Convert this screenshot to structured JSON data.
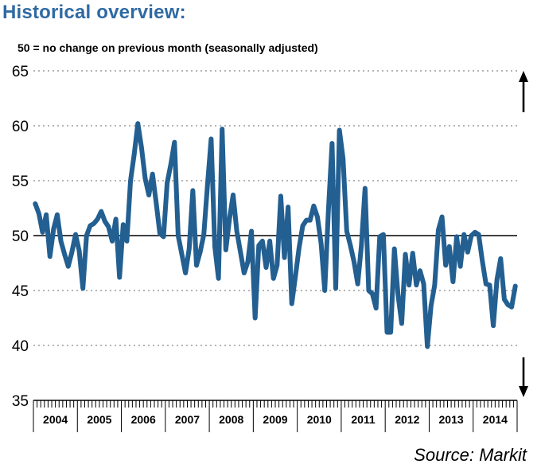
{
  "title": "Historical overview:",
  "subtitle": "50 = no change on previous month (seasonally adjusted)",
  "source": "Source: Markit",
  "colors": {
    "line": "#235f91",
    "reference": "#000000",
    "grid": "#888888",
    "title": "#2f6aa3"
  },
  "icons": {
    "up": "arrow-up-icon",
    "down": "arrow-down-icon"
  },
  "chart_data": {
    "type": "line",
    "title": "Historical overview:",
    "xlabel": "",
    "ylabel": "",
    "ylim": [
      35,
      65
    ],
    "yticks": [
      35,
      40,
      45,
      50,
      55,
      60,
      65
    ],
    "xticks": [
      "2004",
      "2005",
      "2006",
      "2007",
      "2008",
      "2009",
      "2010",
      "2011",
      "2012",
      "2013",
      "2014"
    ],
    "reference_line": 50,
    "grid": "horizontal dotted",
    "start": "2004-01",
    "frequency": "monthly",
    "values": [
      52.9,
      52.0,
      50.3,
      51.9,
      48.1,
      50.6,
      51.9,
      49.5,
      48.3,
      47.2,
      48.5,
      50.1,
      48.6,
      45.2,
      50.0,
      50.9,
      51.1,
      51.5,
      52.2,
      51.3,
      50.8,
      49.5,
      51.5,
      46.2,
      51.0,
      49.5,
      55.0,
      57.4,
      60.2,
      58.0,
      55.2,
      53.7,
      55.6,
      53.0,
      50.2,
      49.9,
      54.8,
      56.5,
      58.5,
      50.0,
      48.3,
      46.6,
      48.8,
      54.1,
      47.3,
      48.5,
      50.1,
      54.6,
      58.8,
      49.0,
      46.1,
      59.7,
      48.7,
      51.5,
      53.7,
      50.4,
      48.5,
      46.6,
      47.6,
      50.4,
      42.5,
      49.1,
      49.5,
      47.1,
      49.5,
      46.1,
      47.3,
      53.6,
      48.0,
      52.6,
      43.8,
      46.3,
      48.9,
      50.9,
      51.4,
      51.4,
      52.7,
      51.7,
      49.3,
      45.0,
      52.3,
      58.4,
      45.2,
      59.6,
      57.0,
      50.4,
      49.1,
      47.6,
      45.6,
      49.1,
      54.3,
      45.0,
      44.7,
      43.4,
      49.9,
      50.1,
      41.2,
      41.2,
      48.8,
      44.6,
      42.0,
      48.3,
      45.5,
      48.4,
      45.5,
      46.8,
      45.6,
      39.9,
      43.6,
      45.5,
      50.5,
      51.7,
      47.3,
      49.0,
      45.8,
      49.9,
      47.2,
      50.1,
      48.5,
      50.0,
      50.3,
      50.1,
      47.7,
      45.6,
      45.5,
      41.8,
      46.0,
      47.9,
      44.2,
      43.7,
      43.5,
      45.4
    ]
  }
}
